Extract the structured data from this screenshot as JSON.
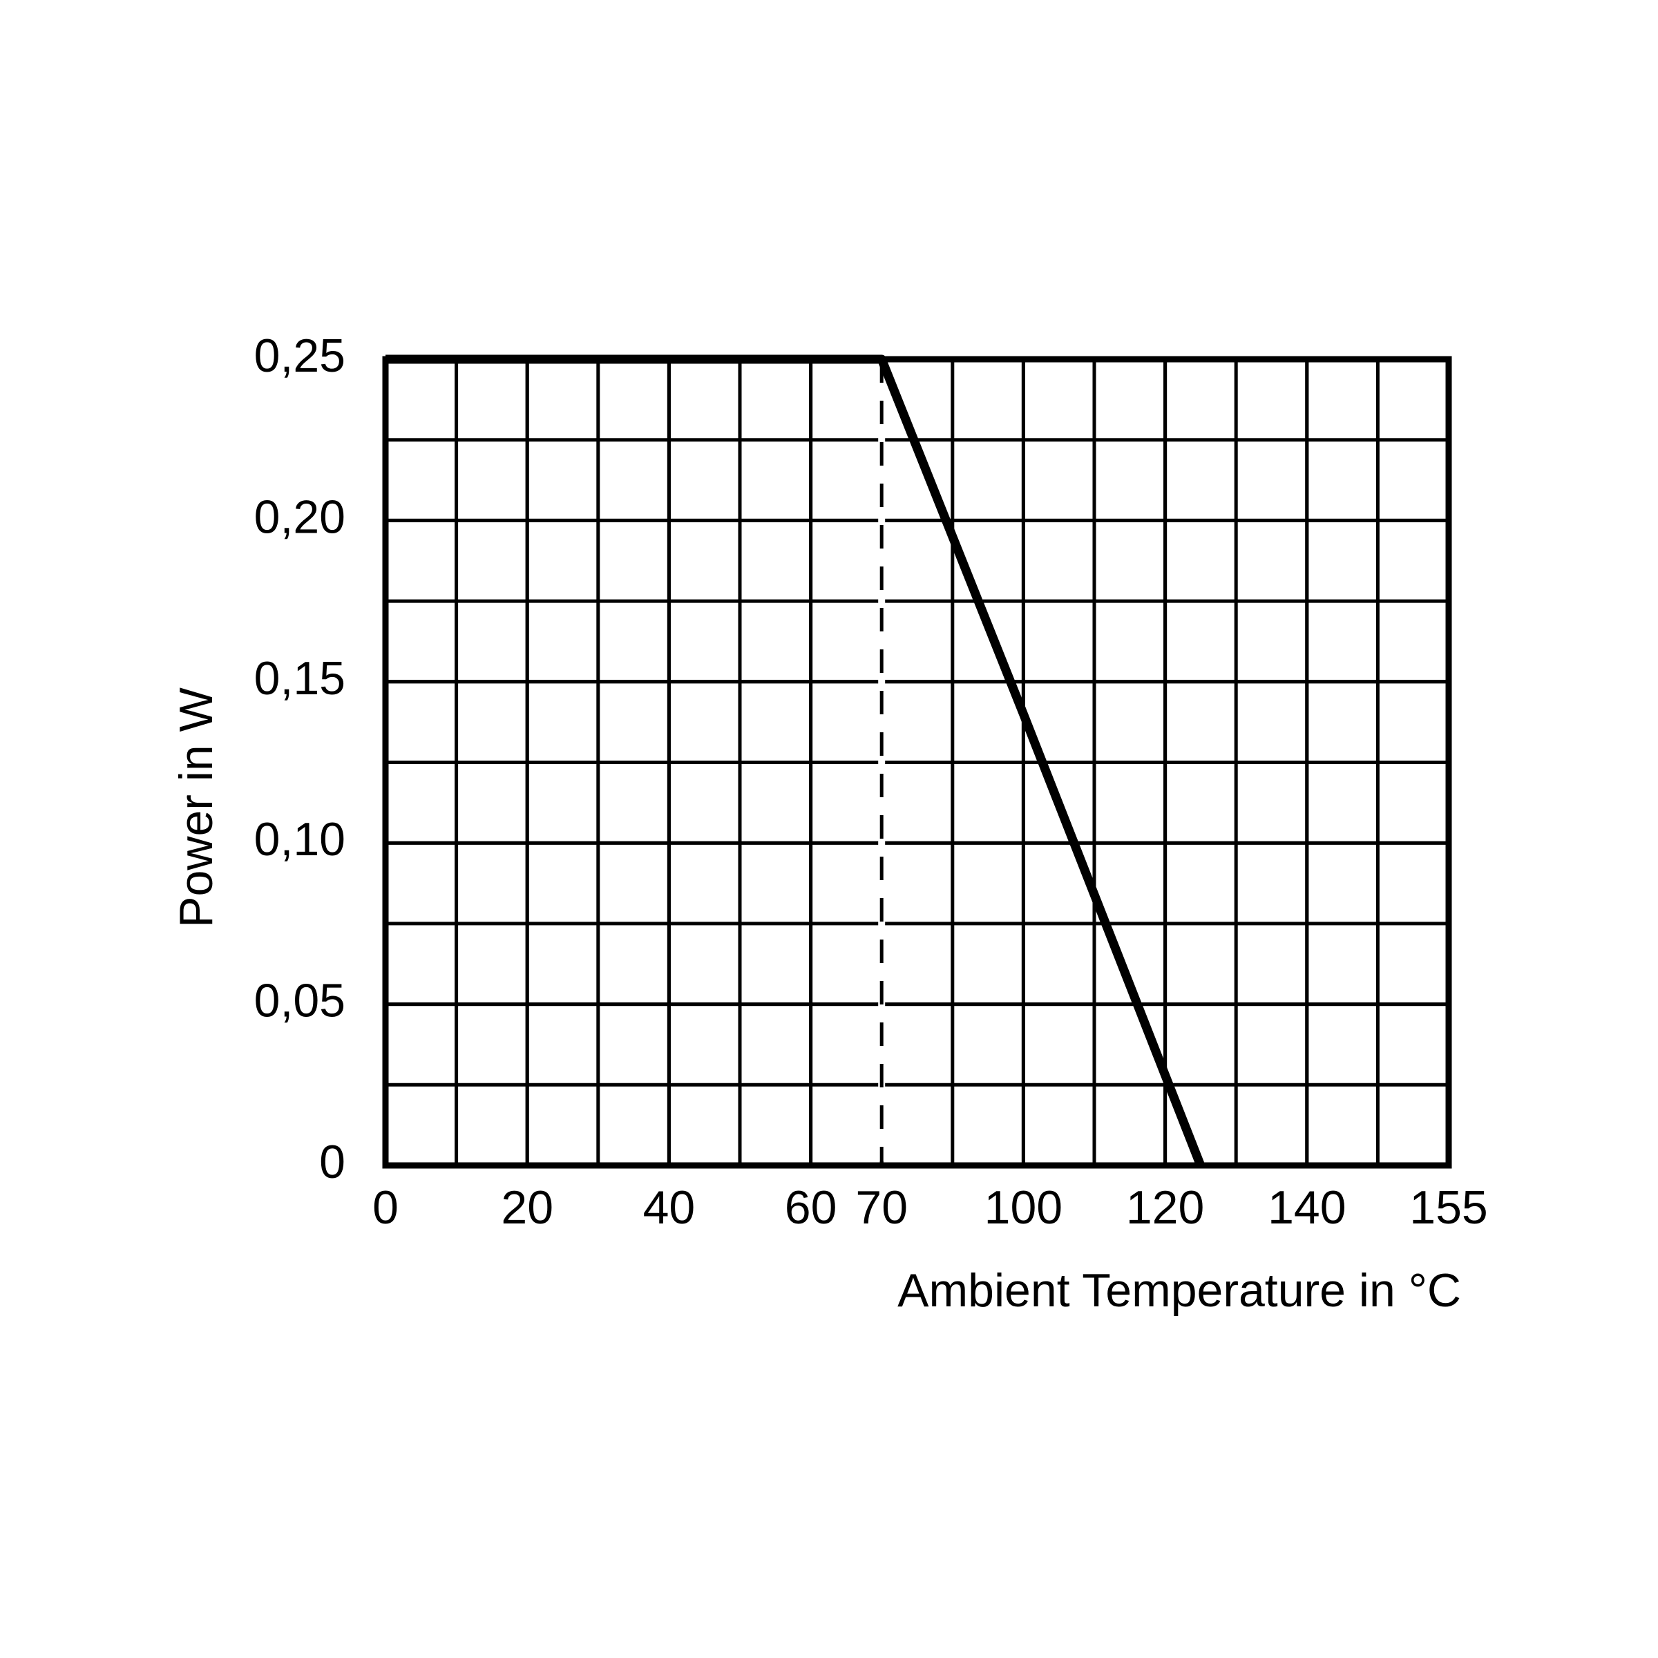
{
  "chart_data": {
    "type": "line",
    "x_label": "Ambient Temperature in °C",
    "y_label": "Power in W",
    "x": [
      0,
      70,
      100,
      125
    ],
    "series": [
      {
        "name": null,
        "color": "#000000",
        "values": [
          0.25,
          0.25,
          0.14,
          0
        ]
      }
    ],
    "xlim": [
      0,
      155
    ],
    "xticks": [
      0,
      20,
      40,
      60,
      70,
      100,
      120,
      140,
      155
    ],
    "ylim": [
      0,
      0.25
    ],
    "yticks": [
      0,
      {
        "value": 0.05,
        "label": "0,05"
      },
      {
        "value": 0.1,
        "label": "0,10"
      },
      {
        "value": 0.15,
        "label": "0,15"
      },
      {
        "value": 0.2,
        "label": "0,20"
      },
      {
        "value": 0.25,
        "label": "0,25"
      }
    ],
    "reference_line_x": 70,
    "grid": true
  }
}
